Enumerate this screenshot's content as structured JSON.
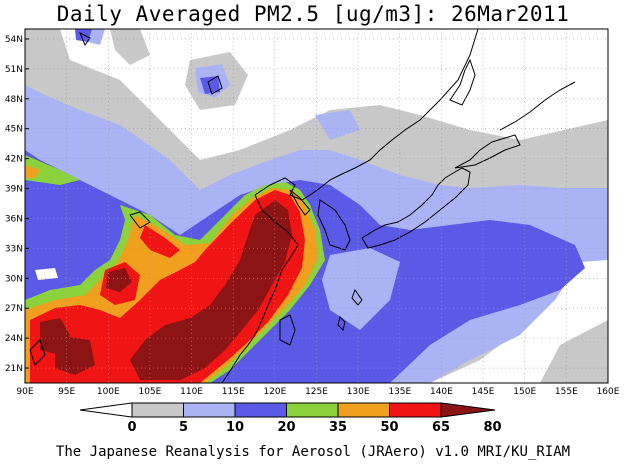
{
  "title": "Daily Averaged PM2.5 [ug/m3]: 26Mar2011",
  "footer": "The Japanese Reanalysis for Aerosol (JRAero) v1.0 MRI/KU_RIAM",
  "map": {
    "lon_range": [
      90,
      160
    ],
    "lat_range": [
      19.5,
      55
    ],
    "lon_ticks": [
      "90E",
      "95E",
      "100E",
      "105E",
      "110E",
      "115E",
      "120E",
      "125E",
      "130E",
      "135E",
      "140E",
      "145E",
      "150E",
      "155E",
      "160E"
    ],
    "lat_ticks": [
      "54N",
      "51N",
      "48N",
      "45N",
      "42N",
      "39N",
      "36N",
      "33N",
      "30N",
      "27N",
      "24N",
      "21N"
    ],
    "grid": "dotted"
  },
  "colorbar": {
    "labels": [
      "0",
      "5",
      "10",
      "20",
      "35",
      "50",
      "65",
      "80"
    ],
    "colors": [
      "#ffffff",
      "#c8c8c8",
      "#aab4f5",
      "#5a5ae6",
      "#8cd23c",
      "#f0a01e",
      "#f01414",
      "#8c1414"
    ]
  }
}
